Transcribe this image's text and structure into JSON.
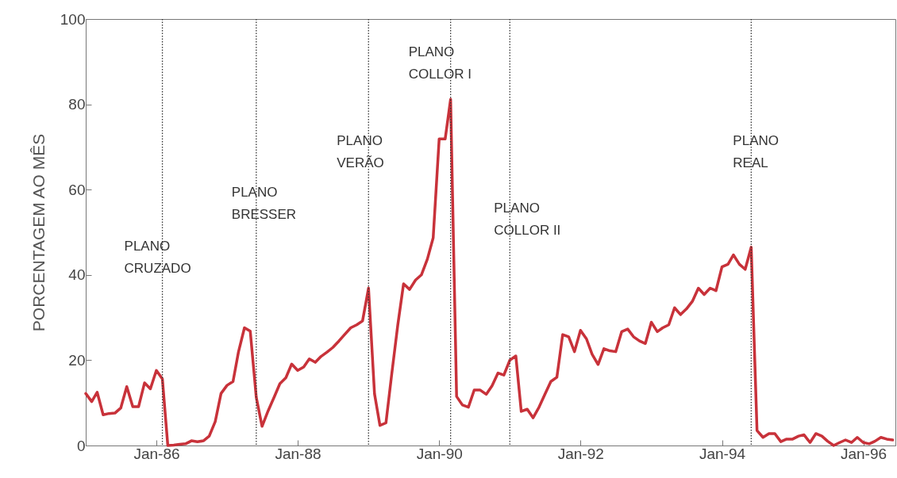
{
  "chart_data": {
    "type": "line",
    "ylabel": "PORCENTAGEM AO MÊS",
    "x": [
      "1985-01",
      "1985-02",
      "1985-03",
      "1985-04",
      "1985-05",
      "1985-06",
      "1985-07",
      "1985-08",
      "1985-09",
      "1985-10",
      "1985-11",
      "1985-12",
      "1986-01",
      "1986-02",
      "1986-03",
      "1986-04",
      "1986-05",
      "1986-06",
      "1986-07",
      "1986-08",
      "1986-09",
      "1986-10",
      "1986-11",
      "1986-12",
      "1987-01",
      "1987-02",
      "1987-03",
      "1987-04",
      "1987-05",
      "1987-06",
      "1987-07",
      "1987-08",
      "1987-09",
      "1987-10",
      "1987-11",
      "1987-12",
      "1988-01",
      "1988-02",
      "1988-03",
      "1988-04",
      "1988-05",
      "1988-06",
      "1988-07",
      "1988-08",
      "1988-09",
      "1988-10",
      "1988-11",
      "1988-12",
      "1989-01",
      "1989-02",
      "1989-03",
      "1989-04",
      "1989-05",
      "1989-06",
      "1989-07",
      "1989-08",
      "1989-09",
      "1989-10",
      "1989-11",
      "1989-12",
      "1990-01",
      "1990-02",
      "1990-03",
      "1990-04",
      "1990-05",
      "1990-06",
      "1990-07",
      "1990-08",
      "1990-09",
      "1990-10",
      "1990-11",
      "1990-12",
      "1991-01",
      "1991-02",
      "1991-03",
      "1991-04",
      "1991-05",
      "1991-06",
      "1991-07",
      "1991-08",
      "1991-09",
      "1991-10",
      "1991-11",
      "1991-12",
      "1992-01",
      "1992-02",
      "1992-03",
      "1992-04",
      "1992-05",
      "1992-06",
      "1992-07",
      "1992-08",
      "1992-09",
      "1992-10",
      "1992-11",
      "1992-12",
      "1993-01",
      "1993-02",
      "1993-03",
      "1993-04",
      "1993-05",
      "1993-06",
      "1993-07",
      "1993-08",
      "1993-09",
      "1993-10",
      "1993-11",
      "1993-12",
      "1994-01",
      "1994-02",
      "1994-03",
      "1994-04",
      "1994-05",
      "1994-06",
      "1994-07",
      "1994-08",
      "1994-09",
      "1994-10",
      "1994-11",
      "1994-12",
      "1995-01",
      "1995-02",
      "1995-03",
      "1995-04",
      "1995-05",
      "1995-06",
      "1995-07",
      "1995-08",
      "1995-09",
      "1995-10",
      "1995-11",
      "1995-12",
      "1996-01",
      "1996-02",
      "1996-03",
      "1996-04",
      "1996-05",
      "1996-06"
    ],
    "series": [
      {
        "color": "#c8323a",
        "values": [
          12.2,
          10.3,
          12.5,
          7.2,
          7.5,
          7.6,
          8.8,
          13.8,
          9.1,
          9.1,
          14.7,
          13.3,
          17.6,
          15.6,
          0,
          0.1,
          0.3,
          0.4,
          1.1,
          0.9,
          1.1,
          2.2,
          5.6,
          12.2,
          14.1,
          15,
          21.9,
          27.6,
          26.8,
          11.3,
          4.5,
          8.1,
          11.3,
          14.5,
          15.9,
          19.1,
          17.6,
          18.4,
          20.3,
          19.5,
          20.9,
          21.9,
          23,
          24.5,
          26.1,
          27.6,
          28.3,
          29.2,
          36.9,
          12.1,
          4.7,
          5.3,
          16.8,
          28.2,
          37.9,
          36.6,
          38.8,
          40,
          43.7,
          48.7,
          71.9,
          71.9,
          81.2,
          11.5,
          9.5,
          9,
          13,
          13,
          12,
          14,
          17,
          16.5,
          20,
          21,
          8,
          8.5,
          6.5,
          9,
          12,
          15,
          16,
          26,
          25.5,
          22,
          27,
          25,
          21.4,
          19,
          22.7,
          22.2,
          22,
          26.7,
          27.3,
          25.5,
          24.5,
          23.9,
          28.9,
          26.7,
          27.6,
          28.3,
          32.3,
          30.7,
          32,
          33.8,
          36.9,
          35.4,
          36.9,
          36.3,
          41.9,
          42.5,
          44.7,
          42.5,
          41.3,
          46.5,
          3.5,
          1.9,
          2.8,
          2.8,
          0.9,
          1.5,
          1.5,
          2.2,
          2.5,
          0.7,
          2.8,
          2.2,
          1,
          0,
          0.7,
          1.3,
          0.7,
          1.9,
          0.7,
          0.4,
          1,
          1.9,
          1.5,
          1.3
        ]
      }
    ],
    "xlim": [
      "1985-01",
      "1996-06-15"
    ],
    "xticks": [
      {
        "value": "1986-01",
        "label": "Jan-86"
      },
      {
        "value": "1988-01",
        "label": "Jan-88"
      },
      {
        "value": "1990-01",
        "label": "Jan-90"
      },
      {
        "value": "1992-01",
        "label": "Jan-92"
      },
      {
        "value": "1994-01",
        "label": "Jan-94"
      },
      {
        "value": "1996-01",
        "label": "Jan-96"
      }
    ],
    "ylim": [
      0,
      100
    ],
    "yticks": [
      0,
      20,
      40,
      60,
      80,
      100
    ],
    "grid": false,
    "line_style": "solid",
    "ref_lines": [
      {
        "axis": "x",
        "value": "1986-02",
        "label": "PLANO CRUZADO",
        "color": "#333333",
        "line_style": "dotted"
      },
      {
        "axis": "x",
        "value": "1987-06",
        "label": "PLANO BRESSER",
        "color": "#333333",
        "line_style": "dotted"
      },
      {
        "axis": "x",
        "value": "1989-01",
        "label": "PLANO VERÃO",
        "color": "#333333",
        "line_style": "dotted"
      },
      {
        "axis": "x",
        "value": "1990-03",
        "label": "PLANO COLLOR I",
        "color": "#333333",
        "line_style": "dotted"
      },
      {
        "axis": "x",
        "value": "1991-01",
        "label": "PLANO COLLOR II",
        "color": "#333333",
        "line_style": "dotted"
      },
      {
        "axis": "x",
        "value": "1994-06",
        "label": "PLANO REAL",
        "color": "#333333",
        "line_style": "dotted"
      }
    ]
  }
}
